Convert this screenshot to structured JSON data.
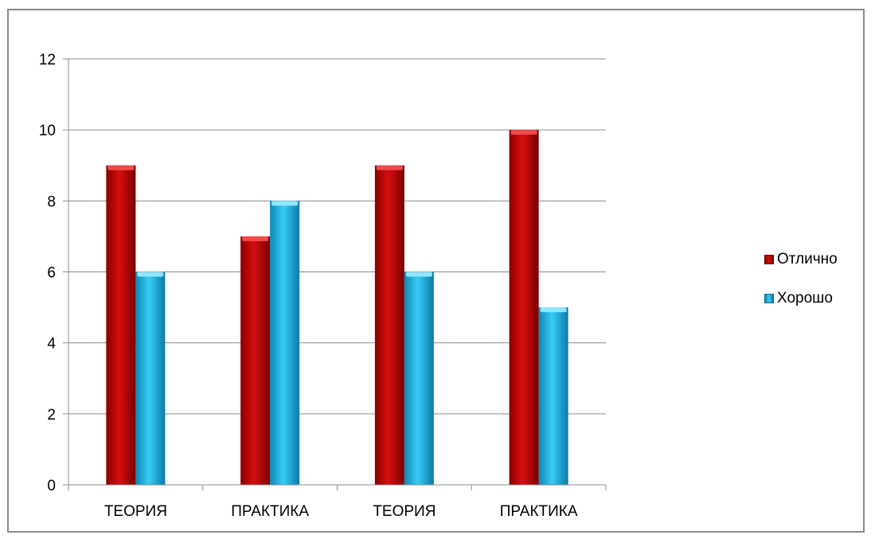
{
  "chart_data": {
    "type": "bar",
    "categories": [
      "ТЕОРИЯ",
      "ПРАКТИКА",
      "ТЕОРИЯ",
      "ПРАКТИКА"
    ],
    "series": [
      {
        "name": "Отлично",
        "values": [
          9,
          7,
          9,
          10
        ],
        "color": "#c00000"
      },
      {
        "name": "Хорошо",
        "values": [
          6,
          8,
          6,
          5
        ],
        "color": "#1fb4e6"
      }
    ],
    "yticks": [
      "0",
      "2",
      "4",
      "6",
      "8",
      "10",
      "12"
    ],
    "ylim": [
      0,
      12
    ],
    "grid": true,
    "legend_position": "right"
  }
}
